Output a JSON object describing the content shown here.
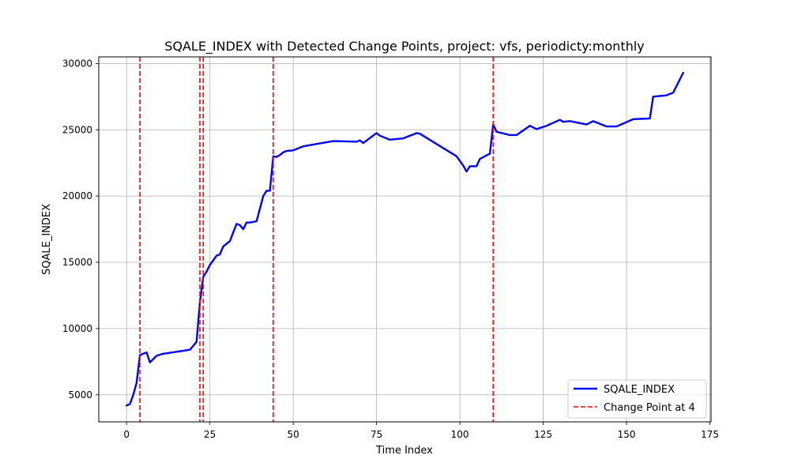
{
  "chart_data": {
    "type": "line",
    "title": "SQALE_INDEX with Detected Change Points, project: vfs, periodicty:monthly",
    "xlabel": "Time Index",
    "ylabel": "SQALE_INDEX",
    "xlim": [
      -8.35,
      175.35
    ],
    "ylim": [
      2960,
      30500
    ],
    "xticks": [
      0,
      25,
      50,
      75,
      100,
      125,
      150,
      175
    ],
    "yticks": [
      5000,
      10000,
      15000,
      20000,
      25000,
      30000
    ],
    "grid": true,
    "legend_position": "lower-right",
    "series": [
      {
        "name": "SQALE_INDEX",
        "color": "#0000ff",
        "style": "solid",
        "points": [
          [
            0,
            4200
          ],
          [
            1,
            4300
          ],
          [
            2,
            5000
          ],
          [
            3,
            5900
          ],
          [
            4,
            8000
          ],
          [
            5,
            8100
          ],
          [
            6,
            8200
          ],
          [
            7,
            7450
          ],
          [
            8,
            7700
          ],
          [
            9,
            7950
          ],
          [
            11,
            8100
          ],
          [
            15,
            8250
          ],
          [
            19,
            8400
          ],
          [
            21,
            9000
          ],
          [
            22,
            12000
          ],
          [
            23,
            13900
          ],
          [
            24,
            14300
          ],
          [
            25,
            14800
          ],
          [
            27,
            15500
          ],
          [
            28,
            15600
          ],
          [
            29,
            16200
          ],
          [
            31,
            16600
          ],
          [
            33,
            17900
          ],
          [
            34,
            17800
          ],
          [
            35,
            17500
          ],
          [
            36,
            18000
          ],
          [
            37,
            18000
          ],
          [
            39,
            18100
          ],
          [
            41,
            20000
          ],
          [
            42,
            20400
          ],
          [
            43,
            20400
          ],
          [
            44,
            23000
          ],
          [
            45,
            22950
          ],
          [
            46,
            23100
          ],
          [
            47,
            23300
          ],
          [
            48,
            23400
          ],
          [
            50,
            23450
          ],
          [
            53,
            23750
          ],
          [
            62,
            24150
          ],
          [
            69,
            24100
          ],
          [
            70,
            24200
          ],
          [
            71,
            24000
          ],
          [
            75,
            24750
          ],
          [
            76,
            24550
          ],
          [
            79,
            24250
          ],
          [
            83,
            24350
          ],
          [
            87,
            24750
          ],
          [
            88,
            24700
          ],
          [
            99,
            23000
          ],
          [
            101,
            22300
          ],
          [
            102,
            21850
          ],
          [
            103,
            22250
          ],
          [
            105,
            22250
          ],
          [
            106,
            22800
          ],
          [
            109,
            23200
          ],
          [
            110,
            25400
          ],
          [
            111,
            24850
          ],
          [
            115,
            24600
          ],
          [
            117,
            24600
          ],
          [
            119,
            24950
          ],
          [
            121,
            25300
          ],
          [
            123,
            25050
          ],
          [
            126,
            25300
          ],
          [
            130,
            25750
          ],
          [
            131,
            25600
          ],
          [
            133,
            25650
          ],
          [
            138,
            25400
          ],
          [
            140,
            25650
          ],
          [
            144,
            25250
          ],
          [
            147,
            25250
          ],
          [
            152,
            25800
          ],
          [
            157,
            25850
          ],
          [
            158,
            27500
          ],
          [
            162,
            27600
          ],
          [
            164,
            27800
          ],
          [
            167,
            29300
          ]
        ]
      }
    ],
    "change_points": {
      "name": "Change Point at 4",
      "color": "#ff0000",
      "style": "dashed",
      "x": [
        4,
        22,
        23,
        44,
        110
      ]
    }
  }
}
